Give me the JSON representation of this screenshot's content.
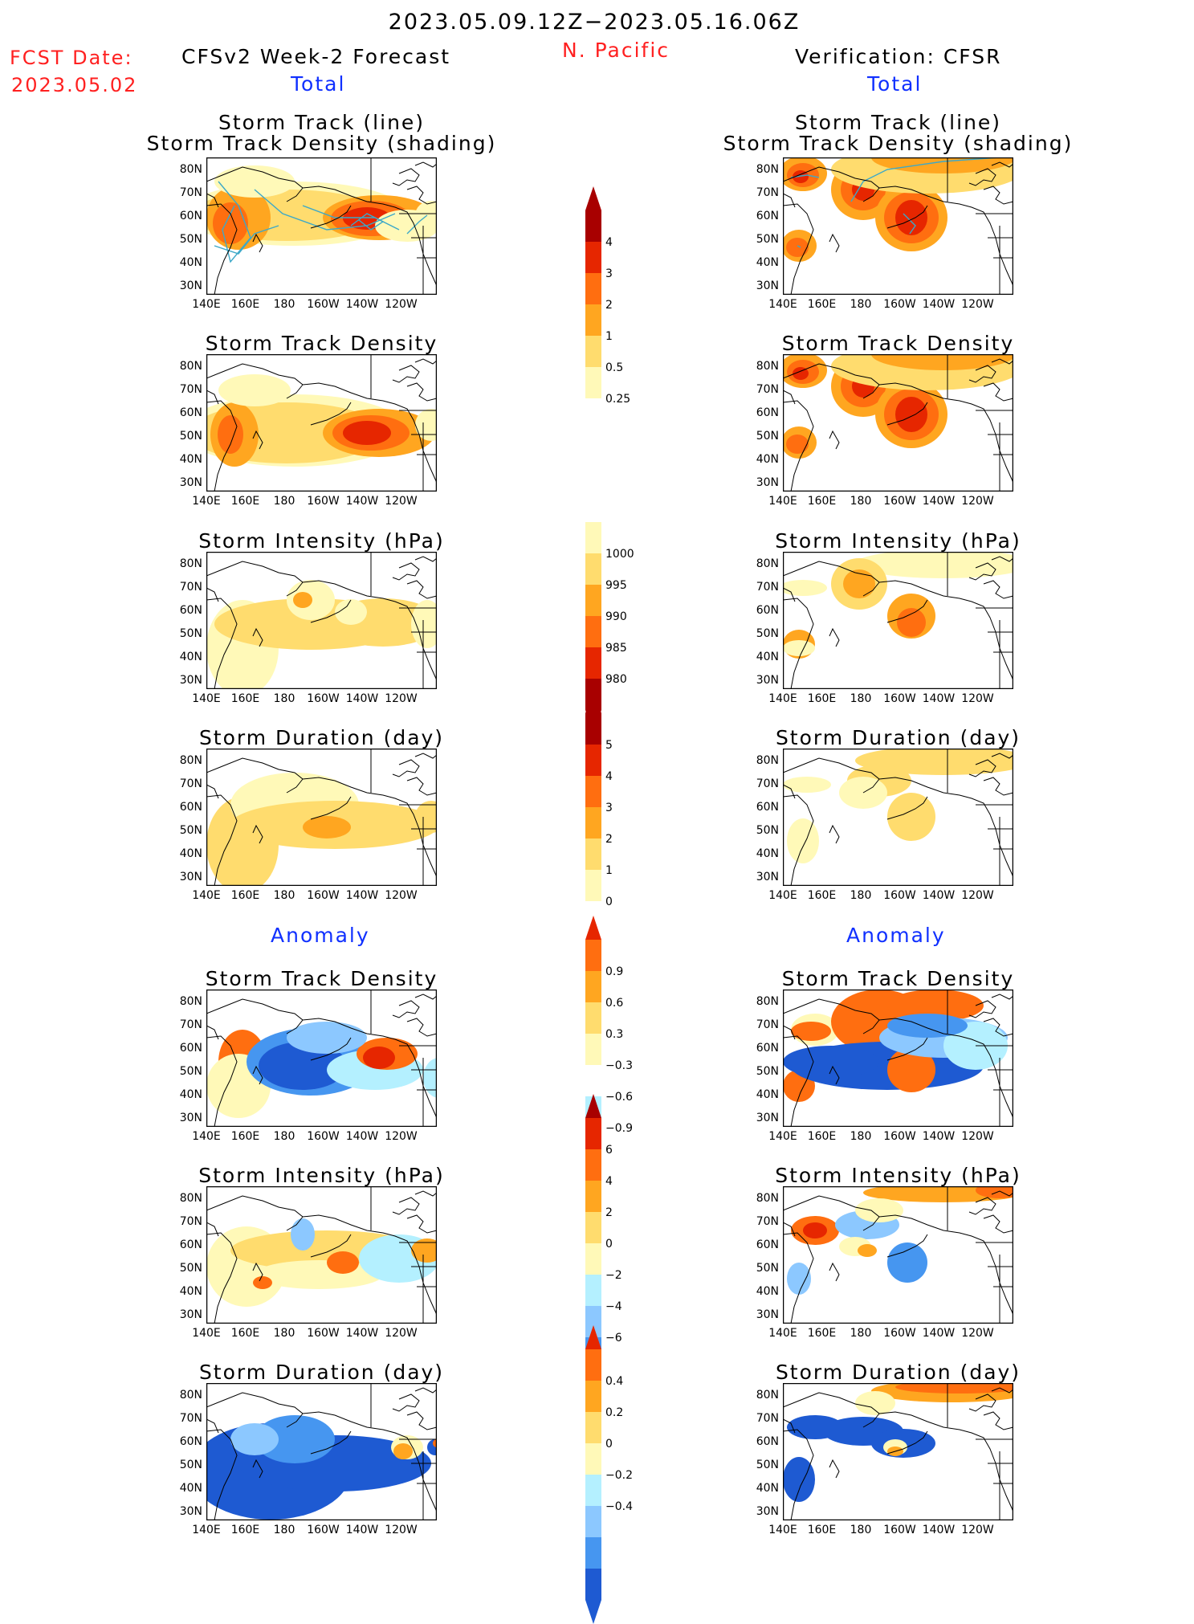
{
  "header": {
    "date_range": "2023.05.09.12Z−2023.05.16.06Z",
    "region": "N. Pacific",
    "fcst_label": "FCST Date:",
    "fcst_date": "2023.05.02",
    "left_title": "CFSv2 Week-2 Forecast",
    "right_title": "Verification: CFSR",
    "total_label": "Total",
    "anomaly_label": "Anomaly"
  },
  "axes": {
    "lat_ticks": [
      "80N",
      "70N",
      "60N",
      "50N",
      "40N",
      "30N"
    ],
    "lon_ticks": [
      "140E",
      "160E",
      "180",
      "160W",
      "140W",
      "120W"
    ]
  },
  "colors": {
    "pos": [
      "#fff9b8",
      "#ffdc6e",
      "#ffa620",
      "#ff6e10",
      "#e62600",
      "#a80000"
    ],
    "neg": [
      "#b4f0ff",
      "#8cc8ff",
      "#4696f0",
      "#1e5ad2"
    ],
    "track_line": "#3ca8c8",
    "coast": "#000000"
  },
  "panels": [
    {
      "title1": "Storm Track (line)",
      "title2": "Storm Track Density (shading)"
    },
    {
      "title1": "Storm Track Density"
    },
    {
      "title1": "Storm Intensity (hPa)"
    },
    {
      "title1": "Storm Duration (day)"
    },
    {
      "title1": "Storm Track Density"
    },
    {
      "title1": "Storm Intensity (hPa)"
    },
    {
      "title1": "Storm Duration (day)"
    }
  ],
  "colorbars": [
    {
      "levels": [
        "4",
        "3",
        "2",
        "1",
        "0.5",
        "0.25"
      ]
    },
    {
      "levels": [
        "1000",
        "995",
        "990",
        "985",
        "980"
      ]
    },
    {
      "levels": [
        "5",
        "4",
        "3",
        "2",
        "1",
        "0"
      ]
    },
    {
      "levels": [
        "0.9",
        "0.6",
        "0.3",
        "−0.3",
        "−0.6",
        "−0.9"
      ]
    },
    {
      "levels": [
        "6",
        "4",
        "2",
        "0",
        "−2",
        "−4",
        "−6"
      ]
    },
    {
      "levels": [
        "0.4",
        "0.2",
        "0",
        "−0.2",
        "−0.4"
      ]
    }
  ]
}
